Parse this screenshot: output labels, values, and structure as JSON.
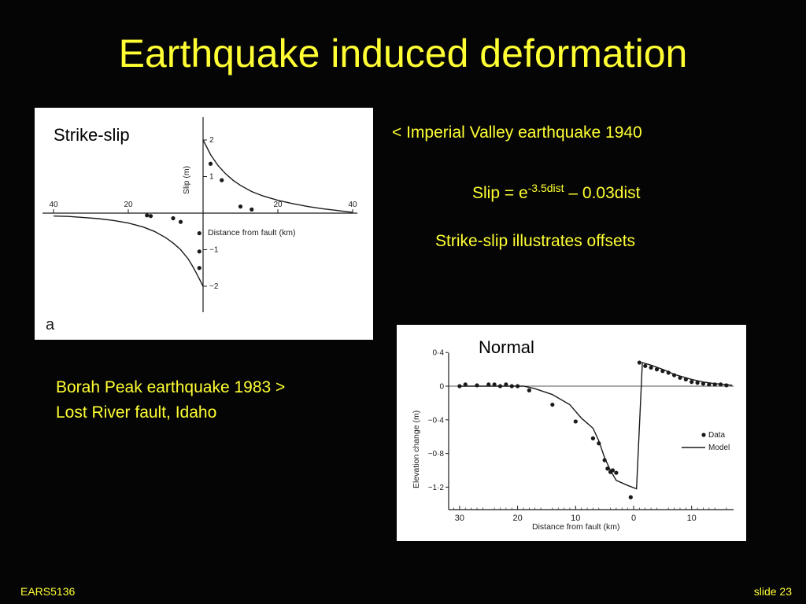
{
  "slide": {
    "title": "Earthquake induced deformation",
    "imperial_text": "< Imperial Valley earthquake 1940",
    "formula": {
      "prefix": "Slip = e",
      "exponent": "-3.5dist",
      "suffix": " – 0.03dist"
    },
    "strike_slip_note": "Strike-slip illustrates offsets",
    "borah_line1": "Borah Peak earthquake 1983 >",
    "borah_line2": "Lost River fault, Idaho",
    "footer_left": "EARS5136",
    "footer_right": "slide 23"
  },
  "colors": {
    "background": "#050505",
    "text": "#ffff33",
    "panel": "#ffffff",
    "ink": "#1a1a1a"
  },
  "chart_data": [
    {
      "type": "scatter",
      "panel_label": "Strike-slip",
      "corner_label": "a",
      "xlabel": "Distance   from   fault (km)",
      "ylabel": "Slip (m)",
      "x_ticks": [
        {
          "value": -40,
          "label": "40"
        },
        {
          "value": -20,
          "label": "20"
        },
        {
          "value": 20,
          "label": "20"
        },
        {
          "value": 40,
          "label": "40"
        }
      ],
      "y_ticks": [
        {
          "value": 2,
          "label": "2"
        },
        {
          "value": 1,
          "label": "1"
        },
        {
          "value": -1,
          "label": "−1"
        },
        {
          "value": -2,
          "label": "−2"
        }
      ],
      "xlim": [
        -42,
        42
      ],
      "ylim": [
        -2.6,
        2.6
      ],
      "series": [
        {
          "kind": "curve",
          "x": [
            -40,
            -36,
            -32,
            -28,
            -24,
            -20,
            -16,
            -13,
            -10,
            -8,
            -6,
            -4,
            -3,
            -2,
            -1,
            0
          ],
          "y": [
            -0.08,
            -0.09,
            -0.12,
            -0.15,
            -0.2,
            -0.27,
            -0.38,
            -0.5,
            -0.67,
            -0.82,
            -1.0,
            -1.25,
            -1.42,
            -1.6,
            -1.8,
            -2.0
          ]
        },
        {
          "kind": "curve",
          "x": [
            0,
            1,
            2,
            3,
            4,
            6,
            8,
            10,
            13,
            16,
            20,
            24,
            28,
            32,
            36,
            40
          ],
          "y": [
            2.0,
            1.8,
            1.6,
            1.45,
            1.3,
            1.08,
            0.9,
            0.76,
            0.59,
            0.47,
            0.35,
            0.26,
            0.18,
            0.12,
            0.07,
            0.02
          ]
        },
        {
          "kind": "points",
          "x": [
            -15,
            -14,
            -8,
            -6,
            -1,
            -1,
            -1,
            2,
            5,
            10,
            13
          ],
          "y": [
            -0.06,
            -0.08,
            -0.14,
            -0.24,
            -0.55,
            -1.05,
            -1.5,
            1.35,
            0.9,
            0.18,
            0.1
          ]
        }
      ]
    },
    {
      "type": "line",
      "panel_label": "Normal",
      "xlabel": "Distance   from   fault  (km)",
      "ylabel": "Elevation   change  (m)",
      "legend": [
        "Data",
        "Model"
      ],
      "x_ticks": [
        {
          "value": -30,
          "label": "30"
        },
        {
          "value": -20,
          "label": "20"
        },
        {
          "value": -10,
          "label": "10"
        },
        {
          "value": 0,
          "label": "0"
        },
        {
          "value": 10,
          "label": "10"
        }
      ],
      "y_ticks": [
        {
          "value": 0.4,
          "label": "0·4"
        },
        {
          "value": 0,
          "label": "0"
        },
        {
          "value": -0.4,
          "label": "−0·4"
        },
        {
          "value": -0.8,
          "label": "−0·8"
        },
        {
          "value": -1.2,
          "label": "−1·2"
        }
      ],
      "xlim": [
        -32,
        17
      ],
      "ylim": [
        -1.4,
        0.45
      ],
      "model": {
        "x": [
          -30,
          -27,
          -24,
          -21,
          -19,
          -17,
          -14,
          -11,
          -9,
          -7,
          -6,
          -5,
          -4,
          -3,
          -1,
          0.5,
          1.5,
          3,
          5,
          7,
          10,
          12,
          14,
          16,
          17
        ],
        "y": [
          0.0,
          0.0,
          0.0,
          0.0,
          0.0,
          -0.03,
          -0.1,
          -0.22,
          -0.38,
          -0.5,
          -0.65,
          -0.85,
          -1.0,
          -1.12,
          -1.18,
          -1.22,
          0.28,
          0.25,
          0.2,
          0.14,
          0.08,
          0.05,
          0.03,
          0.02,
          0.01
        ]
      },
      "data": {
        "x": [
          -30,
          -29,
          -27,
          -25,
          -24,
          -23,
          -22,
          -21,
          -20,
          -18,
          -14,
          -10,
          -7,
          -6,
          -5,
          -4.5,
          -4,
          -3.6,
          -3,
          -0.5,
          1,
          2,
          3,
          4,
          5,
          6,
          7,
          8,
          9,
          10,
          11,
          12,
          13,
          14,
          15,
          16
        ],
        "y": [
          0.0,
          0.02,
          0.01,
          0.02,
          0.02,
          0.0,
          0.02,
          0.0,
          0.0,
          -0.05,
          -0.22,
          -0.42,
          -0.62,
          -0.68,
          -0.88,
          -0.98,
          -1.02,
          -1.0,
          -1.03,
          -1.32,
          0.28,
          0.24,
          0.22,
          0.2,
          0.18,
          0.16,
          0.13,
          0.1,
          0.08,
          0.05,
          0.04,
          0.03,
          0.02,
          0.02,
          0.02,
          0.01
        ]
      }
    }
  ]
}
